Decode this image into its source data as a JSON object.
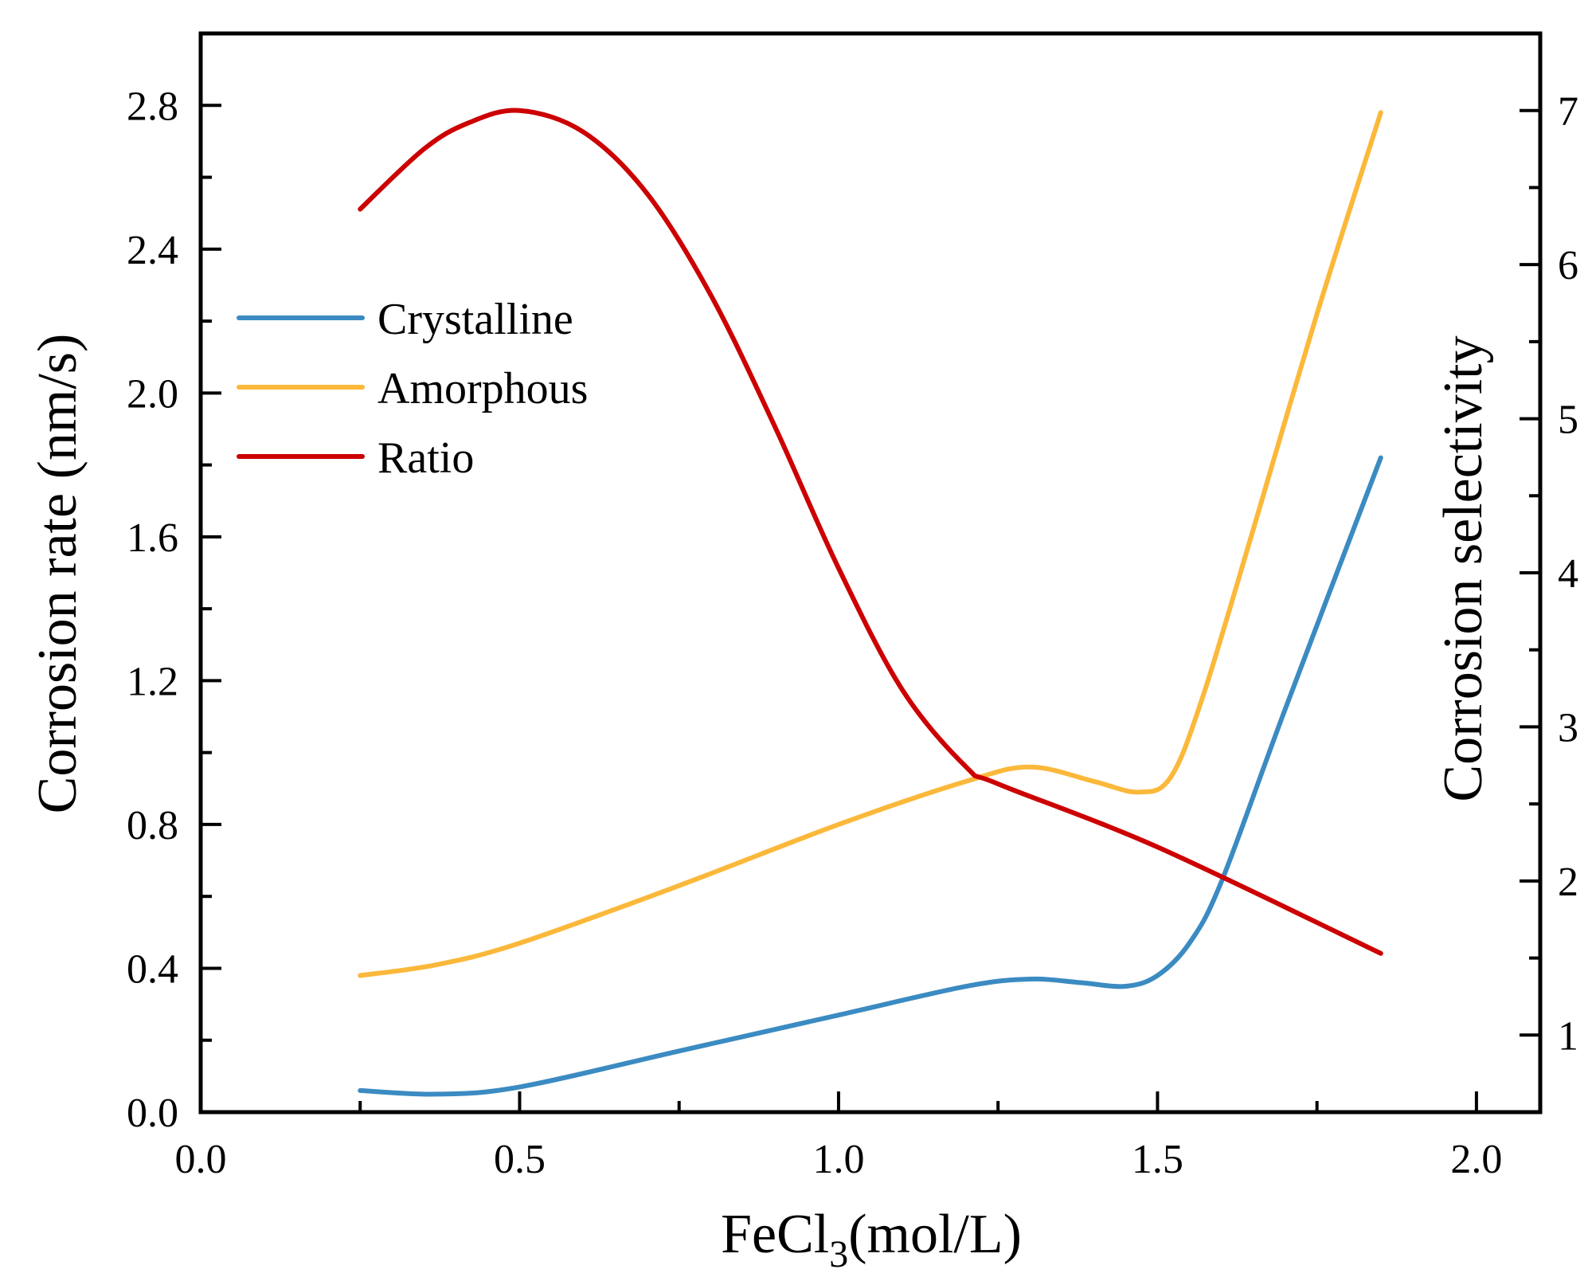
{
  "chart_data": {
    "type": "line",
    "title": "",
    "xlabel": {
      "main": "FeCl",
      "sub": "3",
      "suffix": "(mol/L)"
    },
    "ylabel": "Corrosion rate (nm/s)",
    "y2label": "Corrosion selectivity",
    "xlim": [
      0,
      2.1
    ],
    "ylim": [
      0,
      3.0
    ],
    "y2lim": [
      0.5,
      7.5
    ],
    "xticks": [
      0.0,
      0.5,
      1.0,
      1.5,
      2.0
    ],
    "xtick_labels": [
      "0.0",
      "0.5",
      "1.0",
      "1.5",
      "2.0"
    ],
    "yticks": [
      0.0,
      0.4,
      0.8,
      1.2,
      1.6,
      2.0,
      2.4,
      2.8
    ],
    "ytick_labels": [
      "0.0",
      "0.4",
      "0.8",
      "1.2",
      "1.6",
      "2.0",
      "2.4",
      "2.8"
    ],
    "y2ticks": [
      1,
      2,
      3,
      4,
      5,
      6,
      7
    ],
    "y2tick_labels": [
      "1",
      "2",
      "3",
      "4",
      "5",
      "6",
      "7"
    ],
    "grid": false,
    "legend_position": "upper-left",
    "series": [
      {
        "name": "Crystalline",
        "axis": "left",
        "color": "#3B8BC2",
        "x": [
          0.25,
          0.37,
          0.5,
          0.75,
          1.0,
          1.2,
          1.3,
          1.38,
          1.45,
          1.5,
          1.55,
          1.6,
          1.7,
          1.85
        ],
        "y": [
          0.06,
          0.05,
          0.07,
          0.17,
          0.27,
          0.35,
          0.37,
          0.36,
          0.35,
          0.38,
          0.47,
          0.64,
          1.12,
          1.82
        ]
      },
      {
        "name": "Amorphous",
        "axis": "left",
        "color": "#FBB83A",
        "x": [
          0.25,
          0.37,
          0.5,
          0.75,
          1.0,
          1.2,
          1.3,
          1.4,
          1.47,
          1.52,
          1.57,
          1.65,
          1.75,
          1.85
        ],
        "y": [
          0.38,
          0.41,
          0.47,
          0.63,
          0.8,
          0.92,
          0.96,
          0.92,
          0.89,
          0.93,
          1.15,
          1.62,
          2.22,
          2.78
        ]
      },
      {
        "name": "Ratio",
        "axis": "right",
        "color": "#CC0000",
        "x": [
          0.25,
          0.35,
          0.42,
          0.5,
          0.6,
          0.7,
          0.8,
          0.9,
          1.0,
          1.1,
          1.2,
          1.25,
          1.5,
          1.85
        ],
        "y": [
          6.36,
          6.75,
          6.92,
          7.0,
          6.86,
          6.46,
          5.8,
          4.95,
          4.03,
          3.24,
          2.74,
          2.63,
          2.22,
          1.53
        ]
      }
    ]
  }
}
